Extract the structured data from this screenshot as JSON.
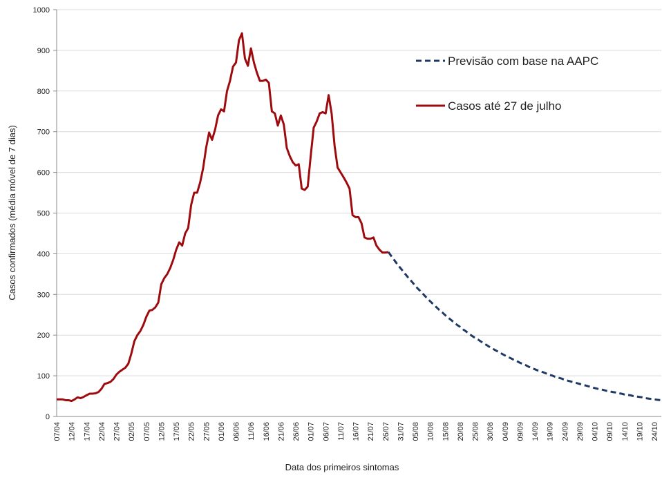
{
  "chart_data": {
    "type": "line",
    "x_label": "Data dos primeiros sintomas",
    "y_label": "Casos confirmados (média móvel de 7 dias)",
    "categories": [
      "07/04",
      null,
      null,
      null,
      null,
      "12/04",
      null,
      null,
      null,
      null,
      "17/04",
      null,
      null,
      null,
      null,
      "22/04",
      null,
      null,
      null,
      null,
      "27/04",
      null,
      null,
      null,
      null,
      "02/05",
      null,
      null,
      null,
      null,
      "07/05",
      null,
      null,
      null,
      null,
      "12/05",
      null,
      null,
      null,
      null,
      "17/05",
      null,
      null,
      null,
      null,
      "22/05",
      null,
      null,
      null,
      null,
      "27/05",
      null,
      null,
      null,
      null,
      "01/06",
      null,
      null,
      null,
      null,
      "06/06",
      null,
      null,
      null,
      null,
      "11/06",
      null,
      null,
      null,
      null,
      "16/06",
      null,
      null,
      null,
      null,
      "21/06",
      null,
      null,
      null,
      null,
      "26/06",
      null,
      null,
      null,
      null,
      "01/07",
      null,
      null,
      null,
      null,
      "06/07",
      null,
      null,
      null,
      null,
      "11/07",
      null,
      null,
      null,
      null,
      "16/07",
      null,
      null,
      null,
      null,
      "21/07",
      null,
      null,
      null,
      null,
      "26/07",
      null,
      null,
      null,
      null,
      "31/07",
      null,
      null,
      null,
      null,
      "05/08",
      null,
      null,
      null,
      null,
      "10/08",
      null,
      null,
      null,
      null,
      "15/08",
      null,
      null,
      null,
      null,
      "20/08",
      null,
      null,
      null,
      null,
      "25/08",
      null,
      null,
      null,
      null,
      "30/08",
      null,
      null,
      null,
      null,
      "04/09",
      null,
      null,
      null,
      null,
      "09/09",
      null,
      null,
      null,
      null,
      "14/09",
      null,
      null,
      null,
      null,
      "19/09",
      null,
      null,
      null,
      null,
      "24/09",
      null,
      null,
      null,
      null,
      "29/09",
      null,
      null,
      null,
      null,
      "04/10",
      null,
      null,
      null,
      null,
      "09/10",
      null,
      null,
      null,
      null,
      "14/10",
      null,
      null,
      null,
      null,
      "19/10",
      null,
      null,
      null,
      null,
      "24/10",
      null,
      null
    ],
    "series": [
      {
        "name": "Previsão com base na AAPC",
        "color": "#1f3864",
        "dashed": true,
        "values": [
          null,
          null,
          null,
          null,
          null,
          null,
          null,
          null,
          null,
          null,
          null,
          null,
          null,
          null,
          null,
          null,
          null,
          null,
          null,
          null,
          null,
          null,
          null,
          null,
          null,
          null,
          null,
          null,
          null,
          null,
          null,
          null,
          null,
          null,
          null,
          null,
          null,
          null,
          null,
          null,
          null,
          null,
          null,
          null,
          null,
          null,
          null,
          null,
          null,
          null,
          null,
          null,
          null,
          null,
          null,
          null,
          null,
          null,
          null,
          null,
          null,
          null,
          null,
          null,
          null,
          null,
          null,
          null,
          null,
          null,
          null,
          null,
          null,
          null,
          null,
          null,
          null,
          null,
          null,
          null,
          null,
          null,
          null,
          null,
          null,
          null,
          null,
          null,
          null,
          null,
          null,
          null,
          null,
          null,
          null,
          null,
          null,
          null,
          null,
          null,
          null,
          null,
          null,
          null,
          null,
          null,
          null,
          null,
          null,
          null,
          null,
          404,
          394,
          384,
          374,
          365,
          356,
          347,
          338,
          330,
          321,
          313,
          306,
          298,
          290,
          283,
          276,
          269,
          262,
          256,
          249,
          243,
          237,
          231,
          225,
          220,
          214,
          209,
          203,
          198,
          193,
          189,
          184,
          179,
          175,
          170,
          166,
          162,
          158,
          154,
          150,
          146,
          143,
          139,
          136,
          132,
          129,
          126,
          122,
          119,
          116,
          113,
          111,
          108,
          105,
          102,
          100,
          97,
          95,
          93,
          90,
          88,
          86,
          84,
          82,
          80,
          78,
          76,
          74,
          72,
          70,
          68,
          67,
          65,
          63,
          62,
          60,
          59,
          57,
          56,
          54,
          53,
          52,
          50,
          49,
          48,
          47,
          45,
          44,
          43,
          42,
          41,
          40
        ]
      },
      {
        "name": "Casos até 27 de julho",
        "color": "#9e0b0f",
        "dashed": false,
        "values": [
          42,
          42,
          42,
          40,
          40,
          38,
          42,
          47,
          45,
          48,
          52,
          56,
          56,
          57,
          60,
          68,
          80,
          82,
          85,
          92,
          103,
          110,
          115,
          120,
          130,
          155,
          185,
          200,
          210,
          225,
          245,
          260,
          262,
          268,
          280,
          325,
          340,
          350,
          365,
          385,
          410,
          428,
          420,
          450,
          463,
          520,
          550,
          550,
          575,
          610,
          660,
          698,
          680,
          705,
          740,
          755,
          750,
          800,
          825,
          860,
          870,
          925,
          942,
          880,
          862,
          905,
          870,
          845,
          825,
          825,
          828,
          820,
          750,
          745,
          715,
          740,
          718,
          660,
          640,
          625,
          617,
          620,
          560,
          557,
          565,
          640,
          710,
          725,
          745,
          748,
          745,
          790,
          745,
          665,
          612,
          600,
          588,
          575,
          560,
          495,
          490,
          490,
          475,
          440,
          437,
          437,
          440,
          420,
          410,
          403,
          403,
          404,
          null,
          null,
          null,
          null,
          null,
          null,
          null,
          null,
          null,
          null,
          null,
          null,
          null,
          null,
          null,
          null,
          null,
          null,
          null,
          null,
          null,
          null,
          null,
          null,
          null,
          null,
          null,
          null,
          null,
          null,
          null,
          null,
          null,
          null,
          null,
          null,
          null,
          null,
          null,
          null,
          null,
          null,
          null,
          null,
          null,
          null,
          null,
          null,
          null,
          null,
          null,
          null,
          null,
          null,
          null,
          null,
          null,
          null,
          null,
          null,
          null,
          null,
          null,
          null,
          null,
          null,
          null,
          null,
          null,
          null,
          null,
          null,
          null,
          null,
          null,
          null,
          null,
          null,
          null,
          null,
          null,
          null,
          null,
          null,
          null,
          null,
          null,
          null,
          null,
          null,
          null
        ]
      }
    ],
    "ylim": [
      0,
      1000
    ],
    "yticks": [
      0,
      100,
      200,
      300,
      400,
      500,
      600,
      700,
      800,
      900,
      1000
    ],
    "grid": true,
    "legend": "upper right"
  }
}
